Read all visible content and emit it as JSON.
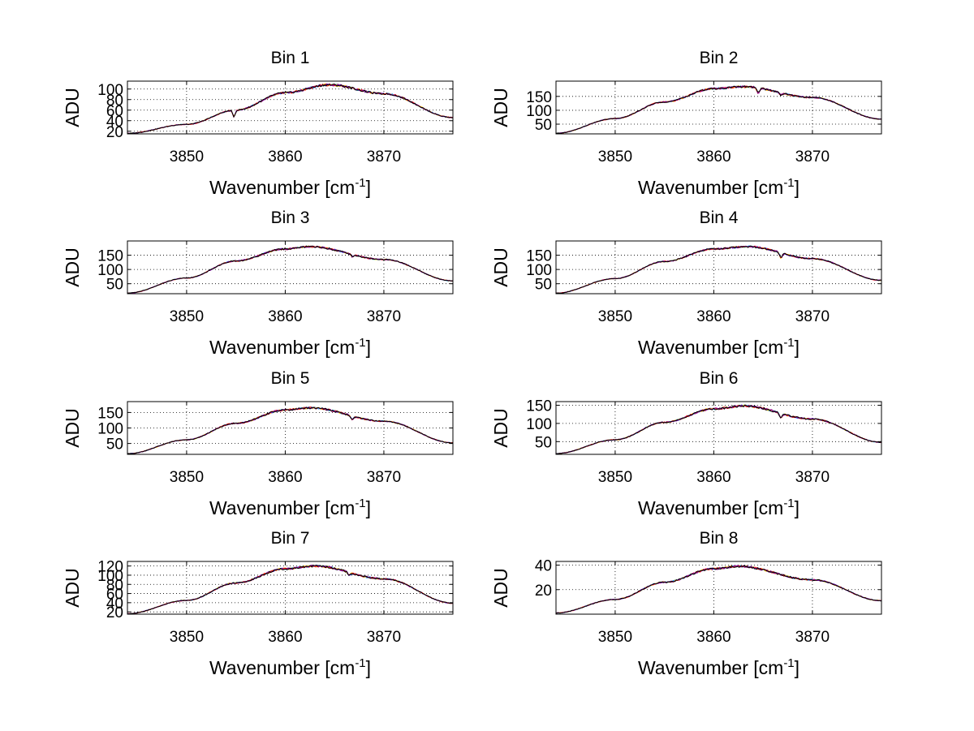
{
  "figure": {
    "background": "#ffffff",
    "series_colors": [
      "#ff0000",
      "#00a0ff",
      "#ffd000",
      "#000000",
      "#8000a0"
    ],
    "grid": "dotted"
  },
  "chart_data": [
    {
      "type": "line",
      "title": "Bin 1",
      "xlabel": "Wavenumber [cm",
      "xlabel_sup": "-1",
      "xlabel_end": "]",
      "ylabel": "ADU",
      "xlim": [
        3844,
        3877
      ],
      "ylim": [
        15,
        115
      ],
      "xticks": [
        3850,
        3860,
        3870
      ],
      "yticks": [
        20,
        40,
        60,
        80,
        100
      ],
      "ytick_labels": [
        "20",
        "40",
        "60",
        "80",
        "100"
      ],
      "peak_x": 3864.5,
      "values": [
        [
          3844,
          16
        ],
        [
          3850,
          33
        ],
        [
          3855,
          60
        ],
        [
          3860,
          93
        ],
        [
          3864.5,
          108
        ],
        [
          3870,
          91
        ],
        [
          3877,
          46
        ]
      ],
      "dips": [
        [
          3854.8,
          -12
        ]
      ],
      "noise": 1.5
    },
    {
      "type": "line",
      "title": "Bin 2",
      "xlabel": "Wavenumber [cm",
      "xlabel_sup": "-1",
      "xlabel_end": "]",
      "ylabel": "ADU",
      "xlim": [
        3844,
        3877
      ],
      "ylim": [
        15,
        205
      ],
      "xticks": [
        3850,
        3860,
        3870
      ],
      "yticks": [
        50,
        100,
        150
      ],
      "ytick_labels": [
        "50",
        "100",
        "150"
      ],
      "peak_x": 3863,
      "values": [
        [
          3844,
          17
        ],
        [
          3850,
          70
        ],
        [
          3855,
          130
        ],
        [
          3860,
          178
        ],
        [
          3863,
          185
        ],
        [
          3870,
          146
        ],
        [
          3877,
          68
        ]
      ],
      "dips": [
        [
          3864.5,
          -18
        ],
        [
          3866.8,
          -8
        ]
      ],
      "noise": 2.5
    },
    {
      "type": "line",
      "title": "Bin 3",
      "xlabel": "Wavenumber [cm",
      "xlabel_sup": "-1",
      "xlabel_end": "]",
      "ylabel": "ADU",
      "xlim": [
        3844,
        3877
      ],
      "ylim": [
        15,
        200
      ],
      "xticks": [
        3850,
        3860,
        3870
      ],
      "yticks": [
        50,
        100,
        150
      ],
      "ytick_labels": [
        "50",
        "100",
        "150"
      ],
      "peak_x": 3862.5,
      "values": [
        [
          3844,
          17
        ],
        [
          3850,
          70
        ],
        [
          3855,
          130
        ],
        [
          3860,
          172
        ],
        [
          3862.5,
          180
        ],
        [
          3870,
          135
        ],
        [
          3877,
          60
        ]
      ],
      "dips": [
        [
          3866.8,
          -7
        ]
      ],
      "noise": 2.2
    },
    {
      "type": "line",
      "title": "Bin 4",
      "xlabel": "Wavenumber [cm",
      "xlabel_sup": "-1",
      "xlabel_end": "]",
      "ylabel": "ADU",
      "xlim": [
        3844,
        3877
      ],
      "ylim": [
        15,
        200
      ],
      "xticks": [
        3850,
        3860,
        3870
      ],
      "yticks": [
        50,
        100,
        150
      ],
      "ytick_labels": [
        "50",
        "100",
        "150"
      ],
      "peak_x": 3863.5,
      "values": [
        [
          3844,
          17
        ],
        [
          3850,
          68
        ],
        [
          3855,
          128
        ],
        [
          3860,
          172
        ],
        [
          3863.5,
          180
        ],
        [
          3870,
          138
        ],
        [
          3877,
          62
        ]
      ],
      "dips": [
        [
          3866.8,
          -18
        ]
      ],
      "noise": 2.2
    },
    {
      "type": "line",
      "title": "Bin 5",
      "xlabel": "Wavenumber [cm",
      "xlabel_sup": "-1",
      "xlabel_end": "]",
      "ylabel": "ADU",
      "xlim": [
        3844,
        3877
      ],
      "ylim": [
        15,
        185
      ],
      "xticks": [
        3850,
        3860,
        3870
      ],
      "yticks": [
        50,
        100,
        150
      ],
      "ytick_labels": [
        "50",
        "100",
        "150"
      ],
      "peak_x": 3862.5,
      "values": [
        [
          3844,
          17
        ],
        [
          3850,
          62
        ],
        [
          3855,
          115
        ],
        [
          3860,
          158
        ],
        [
          3862.5,
          165
        ],
        [
          3870,
          122
        ],
        [
          3877,
          52
        ]
      ],
      "dips": [
        [
          3866.8,
          -12
        ]
      ],
      "noise": 2.2
    },
    {
      "type": "line",
      "title": "Bin 6",
      "xlabel": "Wavenumber [cm",
      "xlabel_sup": "-1",
      "xlabel_end": "]",
      "ylabel": "ADU",
      "xlim": [
        3844,
        3877
      ],
      "ylim": [
        15,
        160
      ],
      "xticks": [
        3850,
        3860,
        3870
      ],
      "yticks": [
        50,
        100,
        150
      ],
      "ytick_labels": [
        "50",
        "100",
        "150"
      ],
      "peak_x": 3863,
      "values": [
        [
          3844,
          17
        ],
        [
          3850,
          55
        ],
        [
          3855,
          103
        ],
        [
          3860,
          140
        ],
        [
          3863,
          148
        ],
        [
          3870,
          112
        ],
        [
          3877,
          48
        ]
      ],
      "dips": [
        [
          3866.8,
          -12
        ]
      ],
      "noise": 2
    },
    {
      "type": "line",
      "title": "Bin 7",
      "xlabel": "Wavenumber [cm",
      "xlabel_sup": "-1",
      "xlabel_end": "]",
      "ylabel": "ADU",
      "xlim": [
        3844,
        3877
      ],
      "ylim": [
        15,
        130
      ],
      "xticks": [
        3850,
        3860,
        3870
      ],
      "yticks": [
        20,
        40,
        60,
        80,
        100,
        120
      ],
      "ytick_labels": [
        "20",
        "40",
        "60",
        "80",
        "100",
        "120"
      ],
      "peak_x": 3863,
      "values": [
        [
          3844,
          16
        ],
        [
          3850,
          45
        ],
        [
          3855,
          83
        ],
        [
          3860,
          114
        ],
        [
          3863,
          120
        ],
        [
          3870,
          92
        ],
        [
          3877,
          39
        ]
      ],
      "dips": [
        [
          3866.5,
          -6
        ]
      ],
      "noise": 1.6
    },
    {
      "type": "line",
      "title": "Bin 8",
      "xlabel": "Wavenumber [cm",
      "xlabel_sup": "-1",
      "xlabel_end": "]",
      "ylabel": "ADU",
      "xlim": [
        3844,
        3877
      ],
      "ylim": [
        0,
        43
      ],
      "xticks": [
        3850,
        3860,
        3870
      ],
      "yticks": [
        20,
        40
      ],
      "ytick_labels": [
        "20",
        "40"
      ],
      "peak_x": 3862.5,
      "values": [
        [
          3844,
          1
        ],
        [
          3850,
          12
        ],
        [
          3855,
          26
        ],
        [
          3860,
          37
        ],
        [
          3862.5,
          39
        ],
        [
          3870,
          28
        ],
        [
          3877,
          11
        ]
      ],
      "dips": [],
      "noise": 0.6
    }
  ]
}
